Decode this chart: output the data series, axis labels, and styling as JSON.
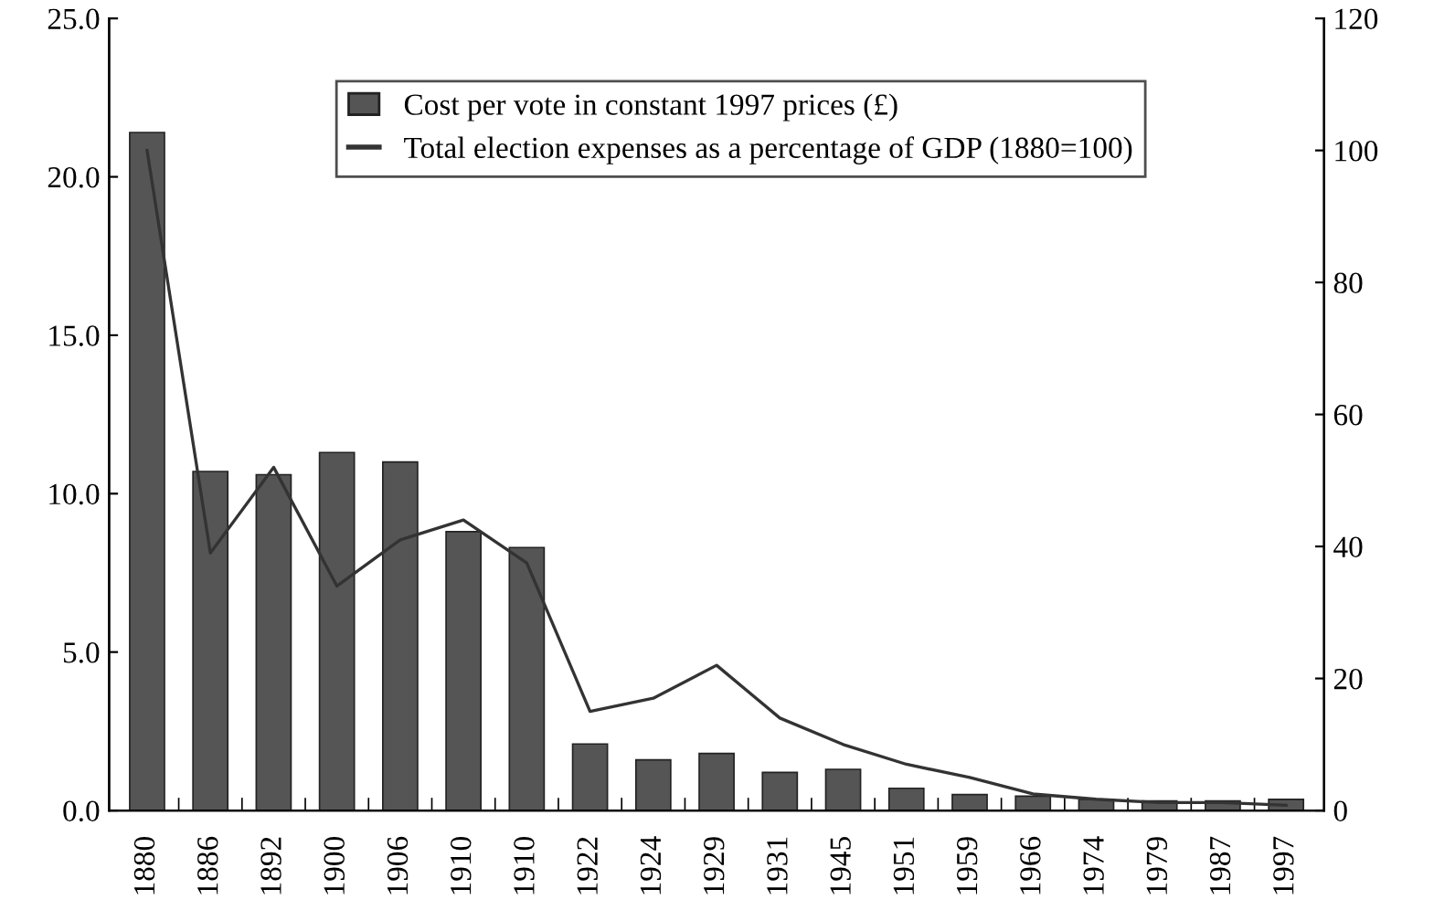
{
  "chart_data": {
    "type": "bar",
    "categories": [
      "1880",
      "1886",
      "1892",
      "1900",
      "1906",
      "1910",
      "1910",
      "1922",
      "1924",
      "1929",
      "1931",
      "1945",
      "1951",
      "1959",
      "1966",
      "1974",
      "1979",
      "1987",
      "1997"
    ],
    "series": [
      {
        "name": "Cost per vote in constant 1997 prices (£)",
        "color": "#555555",
        "values": [
          21.4,
          10.7,
          10.6,
          11.3,
          11.0,
          8.8,
          8.3,
          2.1,
          1.6,
          1.8,
          1.2,
          1.3,
          0.7,
          0.5,
          0.45,
          0.35,
          0.3,
          0.3,
          0.35
        ]
      },
      {
        "name": "Total election expenses as a percentage of GDP (1880=100)",
        "type": "line",
        "axis": "y2",
        "color": "#333333",
        "values": [
          100,
          39,
          52,
          34,
          41,
          44,
          37.5,
          15,
          17,
          22,
          14,
          10,
          7,
          5,
          2.5,
          1.7,
          1.2,
          1.2,
          0.8
        ]
      }
    ],
    "ylim": [
      0,
      25
    ],
    "yticks": [
      {
        "value": 0,
        "label": "0.0"
      },
      {
        "value": 5,
        "label": "5.0"
      },
      {
        "value": 10,
        "label": "10.0"
      },
      {
        "value": 15,
        "label": "15.0"
      },
      {
        "value": 20,
        "label": "20.0"
      },
      {
        "value": 25,
        "label": "25.0"
      }
    ],
    "y2lim": [
      0,
      120
    ],
    "y2ticks": [
      0,
      20,
      40,
      60,
      80,
      100,
      120
    ],
    "legend": "top",
    "grid": false,
    "marker": "none",
    "line_style": "solid"
  }
}
